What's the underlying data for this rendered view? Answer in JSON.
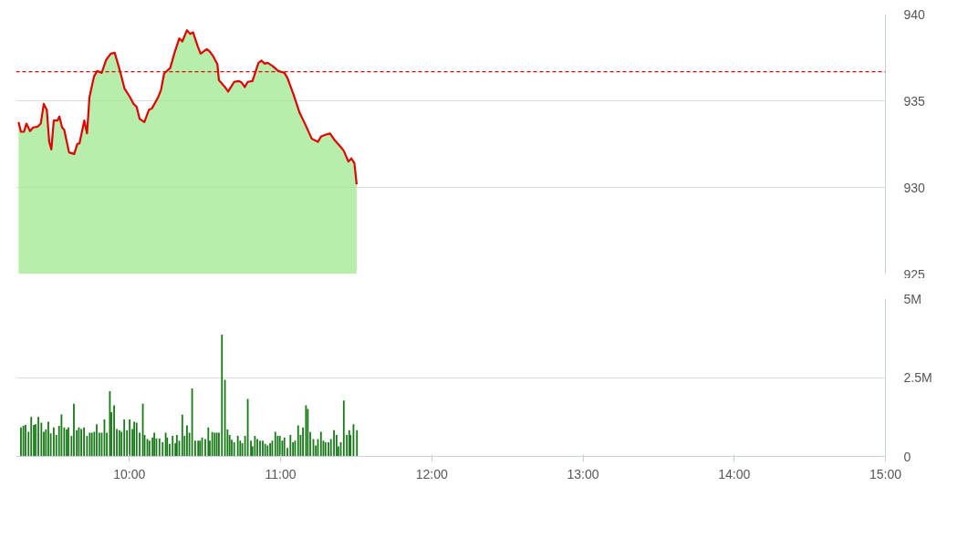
{
  "chart_data": [
    {
      "type": "area",
      "xlim": [
        9.25,
        15
      ],
      "ylim": [
        925,
        940
      ],
      "yticks": [
        925,
        930,
        935,
        940
      ],
      "grid": "y",
      "tick_labels": "y",
      "ref_lines": [
        {
          "axis": "y",
          "value": 936.68,
          "color": "#e00000",
          "line_style": "dashed"
        }
      ],
      "series": [
        {
          "color": "#9fe88f",
          "x": [
            9.267,
            9.283,
            9.303,
            9.319,
            9.343,
            9.364,
            9.394,
            9.414,
            9.434,
            9.454,
            9.47,
            9.484,
            9.5,
            9.525,
            9.537,
            9.555,
            9.569,
            9.601,
            9.635,
            9.656,
            9.67,
            9.702,
            9.72,
            9.736,
            9.766,
            9.787,
            9.817,
            9.847,
            9.877,
            9.903,
            9.938,
            9.968,
            10.004,
            10.028,
            10.048,
            10.068,
            10.099,
            10.129,
            10.149,
            10.189,
            10.209,
            10.23,
            10.27,
            10.3,
            10.33,
            10.35,
            10.381,
            10.401,
            10.421,
            10.451,
            10.471,
            10.512,
            10.532,
            10.552,
            10.582,
            10.592,
            10.632,
            10.653,
            10.693,
            10.723,
            10.743,
            10.763,
            10.783,
            10.814,
            10.854,
            10.874,
            10.894,
            10.914,
            10.945,
            10.985,
            11.025,
            11.045,
            11.086,
            11.106,
            11.126,
            11.156,
            11.206,
            11.247,
            11.267,
            11.297,
            11.327,
            11.358,
            11.398,
            11.418,
            11.448,
            11.468,
            11.488,
            11.503
          ],
          "values": [
            933.77,
            933.21,
            933.21,
            933.68,
            933.25,
            933.46,
            933.51,
            933.68,
            934.82,
            934.47,
            932.63,
            932.19,
            933.86,
            933.86,
            934.09,
            933.46,
            933.33,
            932.02,
            931.93,
            932.51,
            932.54,
            933.86,
            933.12,
            935.21,
            936.4,
            936.72,
            936.61,
            937.37,
            937.72,
            937.77,
            936.72,
            935.7,
            935.21,
            934.82,
            934.65,
            933.95,
            933.77,
            934.47,
            934.56,
            935.18,
            935.61,
            936.58,
            936.89,
            937.81,
            938.6,
            938.42,
            939.07,
            938.86,
            938.95,
            938.16,
            937.72,
            937.98,
            937.84,
            937.6,
            937.11,
            936.19,
            935.79,
            935.53,
            936.09,
            936.14,
            936.05,
            935.79,
            936.09,
            936.14,
            937.19,
            937.32,
            937.14,
            937.19,
            937.02,
            936.72,
            936.61,
            936.32,
            935.35,
            934.82,
            934.3,
            933.77,
            932.81,
            932.63,
            932.93,
            933.04,
            933.11,
            932.72,
            932.33,
            932.11,
            931.49,
            931.67,
            931.4,
            930.18
          ]
        },
        {
          "type": "line",
          "color": "#e00000",
          "x": [
            9.267,
            9.283,
            9.303,
            9.319,
            9.343,
            9.364,
            9.394,
            9.414,
            9.434,
            9.454,
            9.47,
            9.484,
            9.5,
            9.525,
            9.537,
            9.555,
            9.569,
            9.601,
            9.635,
            9.656,
            9.67,
            9.702,
            9.72,
            9.736,
            9.766,
            9.787,
            9.817,
            9.847,
            9.877,
            9.903,
            9.938,
            9.968,
            10.004,
            10.028,
            10.048,
            10.068,
            10.099,
            10.129,
            10.149,
            10.189,
            10.209,
            10.23,
            10.27,
            10.3,
            10.33,
            10.35,
            10.381,
            10.401,
            10.421,
            10.451,
            10.471,
            10.512,
            10.532,
            10.552,
            10.582,
            10.592,
            10.632,
            10.653,
            10.693,
            10.723,
            10.743,
            10.763,
            10.783,
            10.814,
            10.854,
            10.874,
            10.894,
            10.914,
            10.945,
            10.985,
            11.025,
            11.045,
            11.086,
            11.106,
            11.126,
            11.156,
            11.206,
            11.247,
            11.267,
            11.297,
            11.327,
            11.358,
            11.398,
            11.418,
            11.448,
            11.468,
            11.488,
            11.503
          ],
          "values": [
            933.77,
            933.21,
            933.21,
            933.68,
            933.25,
            933.46,
            933.51,
            933.68,
            934.82,
            934.47,
            932.63,
            932.19,
            933.86,
            933.86,
            934.09,
            933.46,
            933.33,
            932.02,
            931.93,
            932.51,
            932.54,
            933.86,
            933.12,
            935.21,
            936.4,
            936.72,
            936.61,
            937.37,
            937.72,
            937.77,
            936.72,
            935.7,
            935.21,
            934.82,
            934.65,
            933.95,
            933.77,
            934.47,
            934.56,
            935.18,
            935.61,
            936.58,
            936.89,
            937.81,
            938.6,
            938.42,
            939.07,
            938.86,
            938.95,
            938.16,
            937.72,
            937.98,
            937.84,
            937.6,
            937.11,
            936.19,
            935.79,
            935.53,
            936.09,
            936.14,
            936.05,
            935.79,
            936.09,
            936.14,
            937.19,
            937.32,
            937.14,
            937.19,
            937.02,
            936.72,
            936.61,
            936.32,
            935.35,
            934.82,
            934.3,
            933.77,
            932.81,
            932.63,
            932.93,
            933.04,
            933.11,
            932.72,
            932.33,
            932.11,
            931.49,
            931.67,
            931.4,
            930.18
          ]
        }
      ]
    },
    {
      "type": "bar",
      "xlim": [
        9.25,
        15
      ],
      "ylim": [
        0,
        5000000
      ],
      "grid": "y",
      "xticks": [
        {
          "value": 10,
          "label": "10:00"
        },
        {
          "value": 11,
          "label": "11:00"
        },
        {
          "value": 12,
          "label": "12:00"
        },
        {
          "value": 13,
          "label": "13:00"
        },
        {
          "value": 14,
          "label": "14:00"
        },
        {
          "value": 15,
          "label": "15:00"
        }
      ],
      "yticks": [
        0,
        {
          "value": 2500000,
          "label": "2.5M"
        },
        {
          "value": 5000000,
          "label": "5M"
        }
      ],
      "series": [
        {
          "color": "#1a7a1a",
          "x": [
            9.283,
            9.299,
            9.313,
            9.333,
            9.351,
            9.368,
            9.38,
            9.398,
            9.418,
            9.434,
            9.448,
            9.464,
            9.48,
            9.5,
            9.517,
            9.535,
            9.551,
            9.569,
            9.585,
            9.597,
            9.617,
            9.633,
            9.652,
            9.666,
            9.682,
            9.7,
            9.72,
            9.738,
            9.752,
            9.768,
            9.784,
            9.801,
            9.817,
            9.835,
            9.851,
            9.871,
            9.881,
            9.899,
            9.917,
            9.934,
            9.948,
            9.966,
            9.984,
            10.002,
            10.02,
            10.032,
            10.048,
            10.068,
            10.089,
            10.101,
            10.119,
            10.133,
            10.153,
            10.165,
            10.179,
            10.199,
            10.22,
            10.24,
            10.25,
            10.266,
            10.286,
            10.304,
            10.314,
            10.33,
            10.35,
            10.365,
            10.381,
            10.397,
            10.415,
            10.435,
            10.455,
            10.467,
            10.481,
            10.502,
            10.522,
            10.532,
            10.548,
            10.564,
            10.578,
            10.592,
            10.612,
            10.632,
            10.649,
            10.663,
            10.677,
            10.693,
            10.717,
            10.733,
            10.747,
            10.765,
            10.783,
            10.804,
            10.814,
            10.83,
            10.846,
            10.864,
            10.882,
            10.898,
            10.914,
            10.931,
            10.945,
            10.965,
            10.981,
            10.995,
            11.011,
            11.025,
            11.045,
            11.065,
            11.082,
            11.096,
            11.116,
            11.132,
            11.148,
            11.168,
            11.18,
            11.196,
            11.217,
            11.233,
            11.247,
            11.267,
            11.283,
            11.297,
            11.317,
            11.333,
            11.353,
            11.37,
            11.382,
            11.398,
            11.418,
            11.438,
            11.454,
            11.462,
            11.482,
            11.505
          ],
          "values": [
            920000,
            970000,
            1000000,
            780000,
            1250000,
            1000000,
            1020000,
            1250000,
            1070000,
            780000,
            850000,
            1100000,
            730000,
            920000,
            680000,
            970000,
            1330000,
            920000,
            850000,
            920000,
            650000,
            1670000,
            830000,
            920000,
            870000,
            920000,
            650000,
            750000,
            750000,
            780000,
            1020000,
            750000,
            750000,
            1170000,
            750000,
            2070000,
            1400000,
            1620000,
            870000,
            830000,
            780000,
            1170000,
            830000,
            1170000,
            870000,
            1100000,
            1070000,
            750000,
            1670000,
            680000,
            550000,
            500000,
            600000,
            750000,
            570000,
            570000,
            450000,
            750000,
            600000,
            400000,
            650000,
            420000,
            680000,
            500000,
            1320000,
            650000,
            980000,
            750000,
            2150000,
            500000,
            500000,
            500000,
            600000,
            550000,
            920000,
            500000,
            770000,
            750000,
            750000,
            750000,
            3860000,
            2430000,
            850000,
            680000,
            530000,
            450000,
            650000,
            500000,
            420000,
            650000,
            1820000,
            500000,
            320000,
            650000,
            550000,
            500000,
            500000,
            400000,
            350000,
            420000,
            500000,
            780000,
            650000,
            650000,
            500000,
            600000,
            270000,
            680000,
            450000,
            500000,
            980000,
            680000,
            920000,
            1620000,
            1500000,
            770000,
            550000,
            350000,
            550000,
            780000,
            500000,
            450000,
            450000,
            550000,
            830000,
            680000,
            320000,
            450000,
            1770000,
            680000,
            830000,
            680000,
            1020000,
            830000
          ]
        }
      ]
    }
  ]
}
